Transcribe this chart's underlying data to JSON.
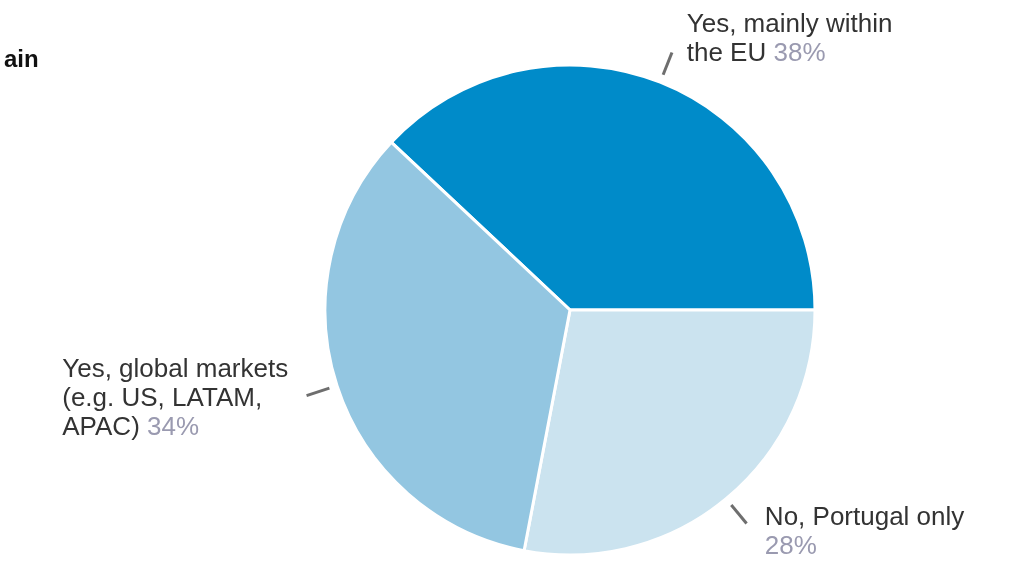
{
  "chart_data": {
    "type": "pie",
    "title": "ain",
    "categories": [
      "Yes, mainly within the EU",
      "No, Portugal only",
      "Yes, global markets (e.g. US, LATAM, APAC)"
    ],
    "values": [
      38,
      28,
      34
    ],
    "value_labels": [
      "38%",
      "28%",
      "34%"
    ],
    "colors": [
      "#008bc9",
      "#cbe3ef",
      "#93c6e1"
    ]
  }
}
